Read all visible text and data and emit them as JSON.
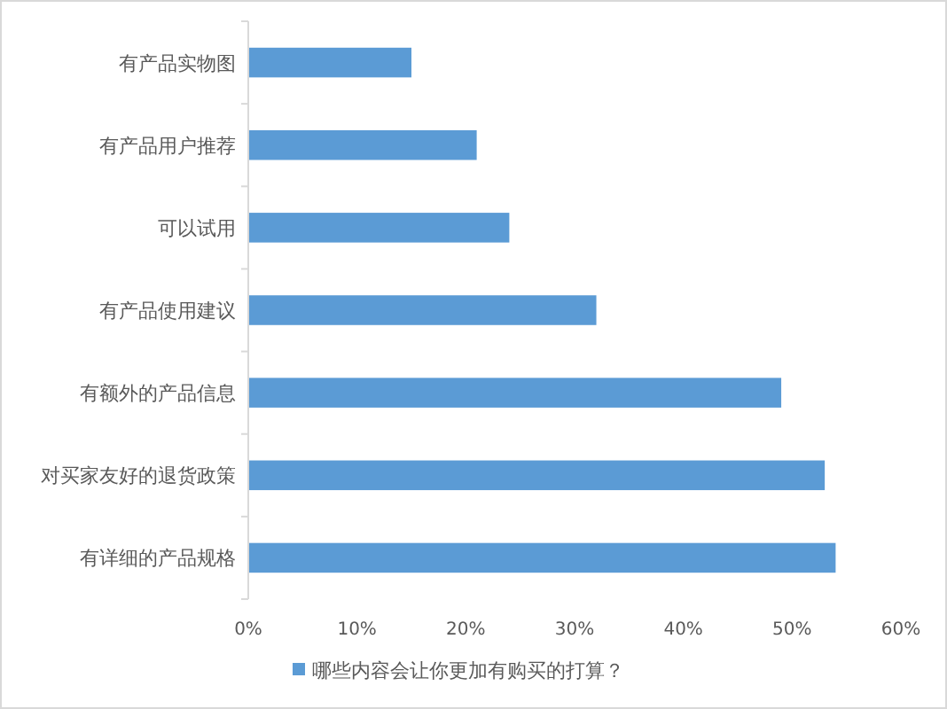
{
  "chart_data": {
    "type": "bar",
    "orientation": "horizontal",
    "categories": [
      "有产品实物图",
      "有产品用户推荐",
      "可以试用",
      "有产品使用建议",
      "有额外的产品信息",
      "对买家友好的退货政策",
      "有详细的产品规格"
    ],
    "series": [
      {
        "name": "哪些内容会让你更加有购买的打算？",
        "color": "#5b9bd5",
        "values": [
          15,
          21,
          24,
          32,
          49,
          53,
          54
        ]
      }
    ],
    "xlim": [
      0,
      60
    ],
    "xticks": [
      {
        "value": 0,
        "label": "0%"
      },
      {
        "value": 10,
        "label": "10%"
      },
      {
        "value": 20,
        "label": "20%"
      },
      {
        "value": 30,
        "label": "30%"
      },
      {
        "value": 40,
        "label": "40%"
      },
      {
        "value": 50,
        "label": "50%"
      },
      {
        "value": 60,
        "label": "60%"
      }
    ],
    "grid": false,
    "legend": "bottom"
  }
}
